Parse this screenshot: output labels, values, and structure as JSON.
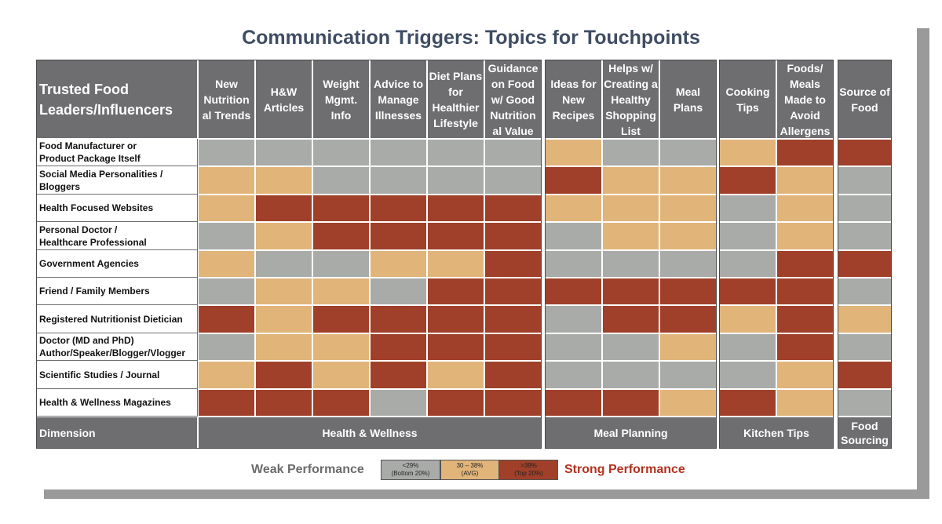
{
  "title": "Communication Triggers: Topics for Touchpoints",
  "colors": {
    "weak": "#a9aba9",
    "avg": "#e1b47a",
    "strong": "#a0402a",
    "header": "#6e6e71"
  },
  "chart_data": {
    "type": "heatmap",
    "title": "Communication Triggers: Topics for Touchpoints",
    "row_header": "Trusted Food Leaders/Influencers",
    "columns": [
      "New Nutrition al Trends",
      "H&W Articles",
      "Weight Mgmt. Info",
      "Advice to Manage Illnesses",
      "Diet Plans for Healthier Lifestyle",
      "Guidance on Food w/ Good Nutrition al Value",
      "Ideas for New Recipes",
      "Helps w/ Creating a Healthy Shopping List",
      "Meal Plans",
      "Cooking Tips",
      "Foods/ Meals Made to Avoid Allergens",
      "Source of Food"
    ],
    "column_labels_display": [
      "New\nNutrition\nal Trends",
      "H&W\nArticles",
      "Weight\nMgmt.\nInfo",
      "Advice to\nManage\nIllnesses",
      "Diet Plans\nfor\nHealthier\nLifestyle",
      "Guidance\non Food\nw/ Good\nNutrition\nal Value",
      "Ideas for\nNew\nRecipes",
      "Helps w/\nCreating a\nHealthy\nShopping\nList",
      "Meal\nPlans",
      "Cooking\nTips",
      "Foods/\nMeals\nMade to\nAvoid\nAllergens",
      "Source of\nFood"
    ],
    "rows": [
      "Food Manufacturer or\nProduct Package Itself",
      "Social Media Personalities /\nBloggers",
      "Health Focused Websites",
      "Personal Doctor /\nHealthcare Professional",
      "Government Agencies",
      "Friend / Family Members",
      "Registered Nutritionist Dietician",
      "Doctor (MD and PhD)\nAuthor/Speaker/Blogger/Vlogger",
      "Scientific Studies / Journal",
      "Health & Wellness Magazines"
    ],
    "levels": [
      "weak",
      "avg",
      "strong"
    ],
    "values": [
      [
        "weak",
        "weak",
        "weak",
        "weak",
        "weak",
        "weak",
        "avg",
        "weak",
        "weak",
        "avg",
        "strong",
        "strong"
      ],
      [
        "avg",
        "avg",
        "weak",
        "weak",
        "weak",
        "weak",
        "strong",
        "avg",
        "avg",
        "strong",
        "avg",
        "weak"
      ],
      [
        "avg",
        "strong",
        "strong",
        "strong",
        "strong",
        "strong",
        "avg",
        "avg",
        "avg",
        "weak",
        "avg",
        "weak"
      ],
      [
        "weak",
        "avg",
        "strong",
        "strong",
        "strong",
        "strong",
        "weak",
        "avg",
        "avg",
        "weak",
        "avg",
        "weak"
      ],
      [
        "avg",
        "weak",
        "weak",
        "avg",
        "avg",
        "strong",
        "weak",
        "weak",
        "weak",
        "weak",
        "strong",
        "strong"
      ],
      [
        "weak",
        "avg",
        "avg",
        "weak",
        "strong",
        "strong",
        "strong",
        "strong",
        "strong",
        "strong",
        "strong",
        "weak"
      ],
      [
        "strong",
        "avg",
        "strong",
        "strong",
        "strong",
        "strong",
        "weak",
        "strong",
        "strong",
        "avg",
        "strong",
        "avg"
      ],
      [
        "weak",
        "avg",
        "avg",
        "strong",
        "strong",
        "strong",
        "weak",
        "weak",
        "avg",
        "weak",
        "strong",
        "weak"
      ],
      [
        "avg",
        "strong",
        "avg",
        "strong",
        "avg",
        "strong",
        "weak",
        "weak",
        "weak",
        "weak",
        "avg",
        "strong"
      ],
      [
        "strong",
        "strong",
        "strong",
        "weak",
        "strong",
        "strong",
        "strong",
        "strong",
        "avg",
        "strong",
        "avg",
        "weak"
      ]
    ],
    "dimensions": [
      {
        "label": "Dimension"
      },
      {
        "label": "Health & Wellness",
        "columns": [
          0,
          1,
          2,
          3,
          4,
          5
        ]
      },
      {
        "label": "Meal Planning",
        "columns": [
          6,
          7,
          8
        ]
      },
      {
        "label": "Kitchen Tips",
        "columns": [
          9,
          10
        ]
      },
      {
        "label": "Food\nSourcing",
        "columns": [
          11
        ]
      }
    ],
    "legend": {
      "weak_label": "Weak Performance",
      "strong_label": "Strong Performance",
      "boxes": [
        {
          "level": "weak",
          "text": "<29%\n(Bottom 20%)"
        },
        {
          "level": "avg",
          "text": "30 – 38%\n(AVG)"
        },
        {
          "level": "strong",
          "text": ">39%\n(Top 20%)"
        }
      ]
    }
  }
}
